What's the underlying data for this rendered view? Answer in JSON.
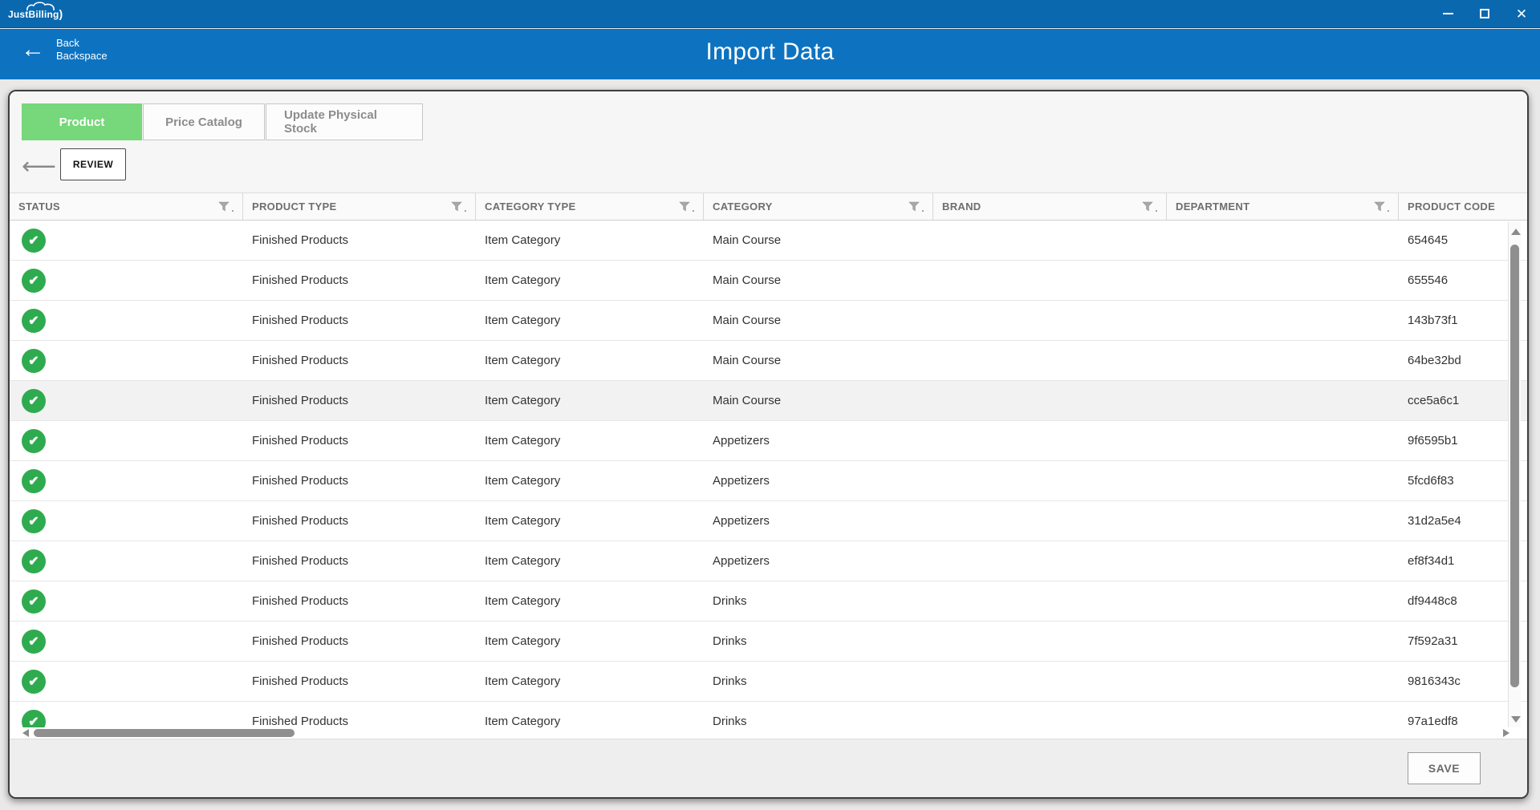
{
  "titlebar": {
    "app_name": "JustBilling",
    "swoosh": ")"
  },
  "navbar": {
    "back_label": "Back",
    "back_sublabel": "Backspace",
    "back_arrow": "←",
    "title": "Import Data"
  },
  "tabs": {
    "items": [
      {
        "label": "Product",
        "active": true
      },
      {
        "label": "Price Catalog",
        "active": false
      },
      {
        "label": "Update Physical Stock",
        "active": false
      }
    ]
  },
  "toolbar": {
    "back_arrow": "⟵",
    "review_label": "REVIEW"
  },
  "table": {
    "columns": [
      {
        "label": "STATUS",
        "filter": true
      },
      {
        "label": "PRODUCT TYPE",
        "filter": true
      },
      {
        "label": "CATEGORY TYPE",
        "filter": true
      },
      {
        "label": "CATEGORY",
        "filter": true
      },
      {
        "label": "BRAND",
        "filter": true
      },
      {
        "label": "DEPARTMENT",
        "filter": true
      },
      {
        "label": "PRODUCT CODE",
        "filter": false
      }
    ],
    "rows": [
      {
        "status": "success",
        "product_type": "Finished Products",
        "category_type": "Item Category",
        "category": "Main Course",
        "brand": "",
        "department": "",
        "product_code": "654645",
        "highlighted": false
      },
      {
        "status": "success",
        "product_type": "Finished Products",
        "category_type": "Item Category",
        "category": "Main Course",
        "brand": "",
        "department": "",
        "product_code": "655546",
        "highlighted": false
      },
      {
        "status": "success",
        "product_type": "Finished Products",
        "category_type": "Item Category",
        "category": "Main Course",
        "brand": "",
        "department": "",
        "product_code": "143b73f1",
        "highlighted": false
      },
      {
        "status": "success",
        "product_type": "Finished Products",
        "category_type": "Item Category",
        "category": "Main Course",
        "brand": "",
        "department": "",
        "product_code": "64be32bd",
        "highlighted": false
      },
      {
        "status": "success",
        "product_type": "Finished Products",
        "category_type": "Item Category",
        "category": "Main Course",
        "brand": "",
        "department": "",
        "product_code": "cce5a6c1",
        "highlighted": true
      },
      {
        "status": "success",
        "product_type": "Finished Products",
        "category_type": "Item Category",
        "category": "Appetizers",
        "brand": "",
        "department": "",
        "product_code": "9f6595b1",
        "highlighted": false
      },
      {
        "status": "success",
        "product_type": "Finished Products",
        "category_type": "Item Category",
        "category": "Appetizers",
        "brand": "",
        "department": "",
        "product_code": "5fcd6f83",
        "highlighted": false
      },
      {
        "status": "success",
        "product_type": "Finished Products",
        "category_type": "Item Category",
        "category": "Appetizers",
        "brand": "",
        "department": "",
        "product_code": "31d2a5e4",
        "highlighted": false
      },
      {
        "status": "success",
        "product_type": "Finished Products",
        "category_type": "Item Category",
        "category": "Appetizers",
        "brand": "",
        "department": "",
        "product_code": "ef8f34d1",
        "highlighted": false
      },
      {
        "status": "success",
        "product_type": "Finished Products",
        "category_type": "Item Category",
        "category": "Drinks",
        "brand": "",
        "department": "",
        "product_code": "df9448c8",
        "highlighted": false
      },
      {
        "status": "success",
        "product_type": "Finished Products",
        "category_type": "Item Category",
        "category": "Drinks",
        "brand": "",
        "department": "",
        "product_code": "7f592a31",
        "highlighted": false
      },
      {
        "status": "success",
        "product_type": "Finished Products",
        "category_type": "Item Category",
        "category": "Drinks",
        "brand": "",
        "department": "",
        "product_code": "9816343c",
        "highlighted": false
      },
      {
        "status": "success",
        "product_type": "Finished Products",
        "category_type": "Item Category",
        "category": "Drinks",
        "brand": "",
        "department": "",
        "product_code": "97a1edf8",
        "highlighted": false
      }
    ]
  },
  "footer": {
    "save_label": "SAVE"
  },
  "colors": {
    "titlebar_blue": "#0a68af",
    "navbar_blue": "#0d73c1",
    "active_tab_green": "#76d77b",
    "status_green": "#2fab4f",
    "row_highlight": "#f2f2f2"
  }
}
